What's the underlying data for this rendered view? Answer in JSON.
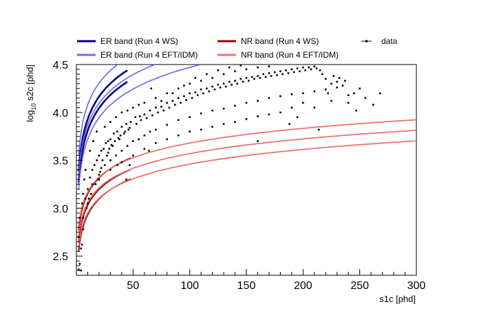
{
  "chart_data": {
    "type": "scatter",
    "title": "",
    "xlabel": "s1c [phd]",
    "ylabel_prefix": "log",
    "ylabel_sub": "10",
    "ylabel_rest": " s2c [phd]",
    "xlim": [
      0,
      300
    ],
    "ylim": [
      2.3,
      4.5
    ],
    "grid": false,
    "legend_position": "top",
    "x_ticks": [
      50,
      100,
      150,
      200,
      250,
      300
    ],
    "x_tick_labels": [
      "50",
      "100",
      "150",
      "200",
      "250",
      "300"
    ],
    "y_ticks": [
      2.5,
      3.0,
      3.5,
      4.0,
      4.5
    ],
    "y_tick_labels": [
      "2.5",
      "3.0",
      "3.5",
      "4.0",
      "4.5"
    ],
    "legend": [
      {
        "label": "ER band (Run 4 WS)",
        "color": "#00007f",
        "style": "line"
      },
      {
        "label": "NR band (Run 4 WS)",
        "color": "#990000",
        "style": "line"
      },
      {
        "label": "data",
        "color": "#000000",
        "style": "marker"
      },
      {
        "label": "ER band (Run 4 EFT/IDM)",
        "color": "#6b6bf0",
        "style": "line"
      },
      {
        "label": "NR band (Run 4 EFT/IDM)",
        "color": "#f07070",
        "style": "line"
      }
    ],
    "bands": [
      {
        "name": "ER band (Run 4 WS)",
        "color": "#00007f",
        "width": 2.6,
        "x_max": 45,
        "curves": [
          {
            "a": 3.15,
            "b": 0.78
          },
          {
            "a": 3.03,
            "b": 0.78
          }
        ]
      },
      {
        "name": "ER band (Run 4 EFT/IDM)",
        "color": "#6b6bf0",
        "width": 1.7,
        "x_max": 300,
        "curves": [
          {
            "a": 3.33,
            "b": 0.75
          },
          {
            "a": 3.12,
            "b": 0.75
          },
          {
            "a": 2.97,
            "b": 0.75
          }
        ]
      },
      {
        "name": "NR band (Run 4 WS)",
        "color": "#990000",
        "width": 1.8,
        "x_max": 48,
        "curves": [
          {
            "a": 2.6,
            "b": 0.55
          },
          {
            "a": 2.48,
            "b": 0.55
          },
          {
            "a": 2.38,
            "b": 0.55
          }
        ]
      },
      {
        "name": "NR band (Run 4 EFT/IDM)",
        "color": "#f07070",
        "width": 1.8,
        "x_max": 300,
        "curves": [
          {
            "a": 2.66,
            "b": 0.51
          },
          {
            "a": 2.55,
            "b": 0.51
          },
          {
            "a": 2.44,
            "b": 0.51
          }
        ]
      }
    ],
    "data_points": [
      [
        2,
        2.36
      ],
      [
        3,
        2.42
      ],
      [
        4,
        2.35
      ],
      [
        5,
        2.62
      ],
      [
        6,
        2.78
      ],
      [
        3,
        2.9
      ],
      [
        5,
        3.05
      ],
      [
        8,
        3.1
      ],
      [
        10,
        3.2
      ],
      [
        12,
        3.32
      ],
      [
        14,
        3.4
      ],
      [
        16,
        3.45
      ],
      [
        18,
        3.5
      ],
      [
        20,
        3.55
      ],
      [
        22,
        3.6
      ],
      [
        24,
        3.62
      ],
      [
        26,
        3.68
      ],
      [
        28,
        3.7
      ],
      [
        30,
        3.72
      ],
      [
        33,
        3.78
      ],
      [
        36,
        3.8
      ],
      [
        40,
        3.85
      ],
      [
        44,
        3.88
      ],
      [
        48,
        3.9
      ],
      [
        52,
        3.95
      ],
      [
        56,
        3.96
      ],
      [
        60,
        3.98
      ],
      [
        65,
        4.02
      ],
      [
        70,
        4.05
      ],
      [
        75,
        4.06
      ],
      [
        80,
        4.1
      ],
      [
        85,
        4.12
      ],
      [
        90,
        4.15
      ],
      [
        95,
        4.17
      ],
      [
        100,
        4.2
      ],
      [
        105,
        4.21
      ],
      [
        110,
        4.24
      ],
      [
        115,
        4.25
      ],
      [
        120,
        4.27
      ],
      [
        125,
        4.29
      ],
      [
        130,
        4.3
      ],
      [
        135,
        4.32
      ],
      [
        140,
        4.33
      ],
      [
        145,
        4.35
      ],
      [
        150,
        4.36
      ],
      [
        155,
        4.37
      ],
      [
        160,
        4.38
      ],
      [
        165,
        4.4
      ],
      [
        170,
        4.41
      ],
      [
        175,
        4.42
      ],
      [
        180,
        4.43
      ],
      [
        185,
        4.44
      ],
      [
        190,
        4.45
      ],
      [
        195,
        4.46
      ],
      [
        200,
        4.47
      ],
      [
        205,
        4.47
      ],
      [
        210,
        4.48
      ],
      [
        215,
        4.44
      ],
      [
        220,
        4.35
      ],
      [
        225,
        4.3
      ],
      [
        230,
        4.32
      ],
      [
        235,
        4.28
      ],
      [
        12,
        3.6
      ],
      [
        15,
        3.7
      ],
      [
        18,
        3.8
      ],
      [
        25,
        3.85
      ],
      [
        30,
        3.9
      ],
      [
        35,
        3.95
      ],
      [
        40,
        4.0
      ],
      [
        45,
        4.02
      ],
      [
        50,
        4.05
      ],
      [
        55,
        4.08
      ],
      [
        60,
        4.1
      ],
      [
        70,
        4.15
      ],
      [
        80,
        4.2
      ],
      [
        90,
        4.25
      ],
      [
        100,
        4.3
      ],
      [
        110,
        4.33
      ],
      [
        120,
        4.36
      ],
      [
        130,
        4.4
      ],
      [
        140,
        4.43
      ],
      [
        150,
        4.45
      ],
      [
        160,
        4.47
      ],
      [
        170,
        4.48
      ],
      [
        14,
        3.25
      ],
      [
        20,
        3.35
      ],
      [
        25,
        3.45
      ],
      [
        30,
        3.5
      ],
      [
        35,
        3.55
      ],
      [
        40,
        3.6
      ],
      [
        45,
        3.65
      ],
      [
        50,
        3.7
      ],
      [
        55,
        3.72
      ],
      [
        60,
        3.76
      ],
      [
        65,
        3.8
      ],
      [
        70,
        3.82
      ],
      [
        80,
        3.87
      ],
      [
        90,
        3.92
      ],
      [
        100,
        3.95
      ],
      [
        110,
        3.99
      ],
      [
        120,
        4.02
      ],
      [
        130,
        4.04
      ],
      [
        140,
        4.07
      ],
      [
        150,
        4.1
      ],
      [
        160,
        4.12
      ],
      [
        170,
        4.15
      ],
      [
        180,
        4.17
      ],
      [
        190,
        4.19
      ],
      [
        200,
        4.2
      ],
      [
        210,
        4.22
      ],
      [
        220,
        4.24
      ],
      [
        230,
        4.26
      ],
      [
        240,
        4.1
      ],
      [
        245,
        4.2
      ],
      [
        250,
        4.25
      ],
      [
        255,
        4.15
      ],
      [
        262,
        4.08
      ],
      [
        268,
        4.2
      ],
      [
        22,
        3.42
      ],
      [
        28,
        3.58
      ],
      [
        32,
        3.65
      ],
      [
        38,
        3.72
      ],
      [
        42,
        3.78
      ],
      [
        46,
        3.82
      ],
      [
        75,
        4.12
      ],
      [
        85,
        4.2
      ],
      [
        95,
        4.28
      ],
      [
        105,
        4.36
      ],
      [
        115,
        4.4
      ],
      [
        125,
        4.44
      ],
      [
        135,
        4.47
      ],
      [
        145,
        4.49
      ],
      [
        64,
        3.6
      ],
      [
        66,
        4.25
      ],
      [
        8,
        3.4
      ],
      [
        7,
        3.3
      ],
      [
        6,
        3.15
      ],
      [
        9,
        3.0
      ],
      [
        11,
        3.1
      ],
      [
        13,
        3.15
      ],
      [
        17,
        3.25
      ],
      [
        19,
        3.3
      ],
      [
        21,
        3.38
      ],
      [
        23,
        3.5
      ],
      [
        27,
        3.55
      ],
      [
        29,
        3.62
      ],
      [
        31,
        3.66
      ],
      [
        34,
        3.7
      ],
      [
        37,
        3.73
      ],
      [
        39,
        3.76
      ],
      [
        43,
        3.8
      ],
      [
        47,
        3.84
      ],
      [
        53,
        3.88
      ],
      [
        57,
        3.92
      ],
      [
        62,
        3.94
      ],
      [
        67,
        3.97
      ],
      [
        72,
        4.0
      ],
      [
        77,
        4.02
      ],
      [
        82,
        4.05
      ],
      [
        87,
        4.08
      ],
      [
        92,
        4.1
      ],
      [
        97,
        4.13
      ],
      [
        102,
        4.15
      ],
      [
        107,
        4.18
      ],
      [
        112,
        4.2
      ],
      [
        117,
        4.22
      ],
      [
        122,
        4.24
      ],
      [
        127,
        4.26
      ],
      [
        132,
        4.27
      ],
      [
        137,
        4.29
      ],
      [
        142,
        4.3
      ],
      [
        147,
        4.32
      ],
      [
        152,
        4.33
      ],
      [
        157,
        4.35
      ],
      [
        162,
        4.36
      ],
      [
        167,
        4.37
      ],
      [
        172,
        4.38
      ],
      [
        177,
        4.39
      ],
      [
        182,
        4.4
      ],
      [
        187,
        4.41
      ],
      [
        192,
        4.42
      ],
      [
        197,
        4.43
      ],
      [
        202,
        4.44
      ],
      [
        207,
        4.45
      ],
      [
        212,
        4.46
      ],
      [
        217,
        4.4
      ],
      [
        222,
        4.2
      ],
      [
        227,
        4.38
      ],
      [
        232,
        4.36
      ],
      [
        237,
        4.33
      ],
      [
        200,
        4.1
      ],
      [
        190,
        4.05
      ],
      [
        180,
        4.0
      ],
      [
        170,
        3.98
      ],
      [
        160,
        3.96
      ],
      [
        150,
        3.93
      ],
      [
        140,
        3.9
      ],
      [
        130,
        3.88
      ],
      [
        120,
        3.85
      ],
      [
        110,
        3.82
      ],
      [
        100,
        3.8
      ],
      [
        90,
        3.76
      ],
      [
        80,
        3.72
      ],
      [
        70,
        3.68
      ],
      [
        60,
        3.62
      ],
      [
        50,
        3.55
      ],
      [
        40,
        3.48
      ],
      [
        30,
        3.4
      ],
      [
        20,
        3.3
      ],
      [
        10,
        3.05
      ],
      [
        195,
        3.95
      ],
      [
        210,
        4.05
      ],
      [
        225,
        4.12
      ],
      [
        240,
        4.18
      ],
      [
        4,
        2.58
      ],
      [
        6,
        2.9
      ],
      [
        2,
        2.7
      ],
      [
        47,
        3.45
      ],
      [
        44,
        3.3
      ],
      [
        36,
        3.45
      ],
      [
        160,
        3.7
      ],
      [
        188,
        3.88
      ],
      [
        214,
        3.82
      ],
      [
        247,
        4.02
      ]
    ]
  }
}
